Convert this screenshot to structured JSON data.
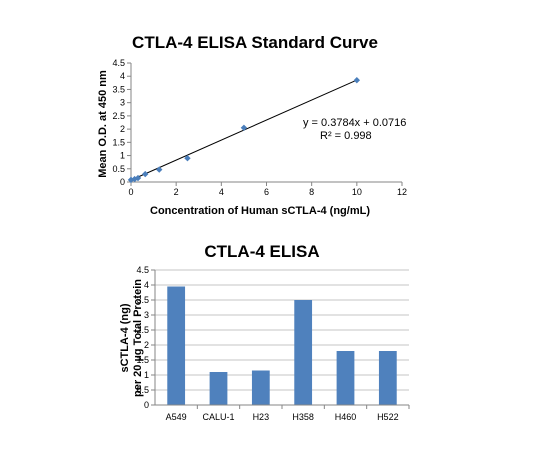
{
  "chart_data": [
    {
      "type": "scatter",
      "title": "CTLA-4 ELISA Standard Curve",
      "xlabel": "Concentration of Human sCTLA-4 (ng/mL)",
      "ylabel": "Mean O.D. at 450 nm",
      "xlim": [
        0,
        12
      ],
      "ylim": [
        0,
        4.5
      ],
      "x_ticks": [
        "0",
        "2",
        "4",
        "6",
        "8",
        "10",
        "12"
      ],
      "y_ticks": [
        "0",
        "0.5",
        "1",
        "1.5",
        "2",
        "2.5",
        "3",
        "3.5",
        "4",
        "4.5"
      ],
      "grid": false,
      "series": [
        {
          "points": [
            {
              "x": 0,
              "y": 0.08
            },
            {
              "x": 0.16,
              "y": 0.11
            },
            {
              "x": 0.31,
              "y": 0.15
            },
            {
              "x": 0.63,
              "y": 0.3
            },
            {
              "x": 1.25,
              "y": 0.47
            },
            {
              "x": 2.5,
              "y": 0.9
            },
            {
              "x": 5,
              "y": 2.05
            },
            {
              "x": 10,
              "y": 3.85
            }
          ],
          "color": "#4a7ebb"
        }
      ],
      "trendline": {
        "slope": 0.3784,
        "intercept": 0.0716,
        "color": "#000000"
      },
      "equation": "y = 0.3784x + 0.0716",
      "r_squared": "R² = 0.998"
    },
    {
      "type": "bar",
      "title": "CTLA-4 ELISA",
      "ylabel_lines": [
        "sCTLA-4 (ng)",
        "per 20 µg Total Protein"
      ],
      "xlabel": "",
      "categories": [
        "A549",
        "CALU-1",
        "H23",
        "H358",
        "H460",
        "H522"
      ],
      "values": [
        3.95,
        1.1,
        1.15,
        3.5,
        1.8,
        1.8
      ],
      "ylim": [
        0,
        4.5
      ],
      "y_ticks": [
        "0",
        "0.5",
        "1",
        "1.5",
        "2",
        "2.5",
        "3",
        "3.5",
        "4",
        "4.5"
      ],
      "grid": true,
      "color": "#4f81bd"
    }
  ]
}
